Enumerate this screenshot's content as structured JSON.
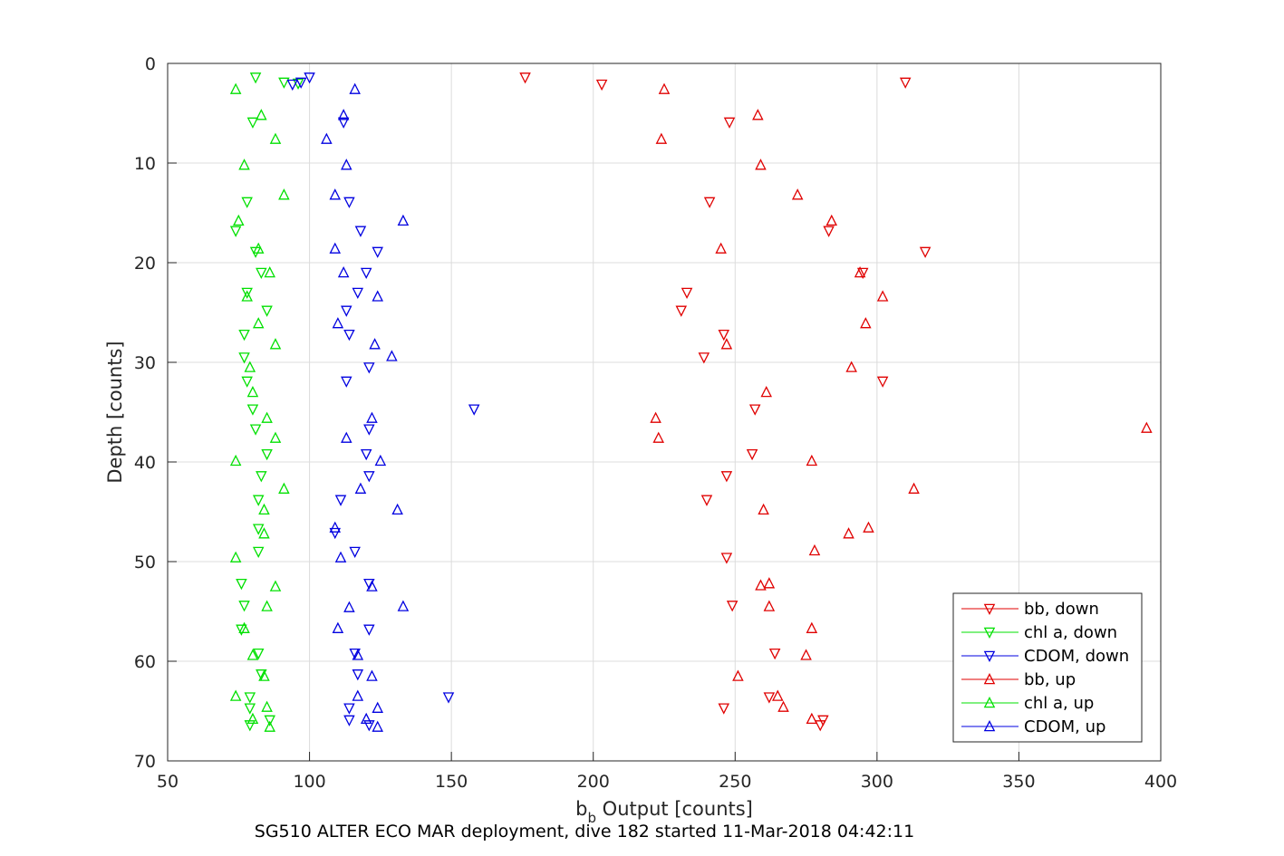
{
  "chart_data": {
    "type": "scatter",
    "xlabel_main": "b",
    "xlabel_sub": "b",
    "xlabel_rest": " Output [counts]",
    "ylabel": "Depth [counts]",
    "footer": "SG510 ALTER ECO MAR deployment, dive 182 started 11-Mar-2018 04:42:11",
    "xlim": [
      50,
      400
    ],
    "ylim": [
      0,
      70
    ],
    "y_reversed": true,
    "grid": true,
    "legend_position": "bottom-right",
    "xticks": [
      "50",
      "100",
      "150",
      "200",
      "250",
      "300",
      "350",
      "400"
    ],
    "yticks": [
      "0",
      "10",
      "20",
      "30",
      "40",
      "50",
      "60",
      "70"
    ],
    "series": [
      {
        "name": "bb, down",
        "color": "#e00000",
        "marker": "triangle-down",
        "points": [
          [
            176,
            1.4
          ],
          [
            203,
            2.1
          ],
          [
            310,
            1.9
          ],
          [
            248,
            5.9
          ],
          [
            241,
            13.9
          ],
          [
            283,
            16.8
          ],
          [
            317,
            18.9
          ],
          [
            295,
            21.0
          ],
          [
            233,
            23.0
          ],
          [
            231,
            24.8
          ],
          [
            246,
            27.2
          ],
          [
            239,
            29.5
          ],
          [
            302,
            31.9
          ],
          [
            257,
            34.7
          ],
          [
            256,
            39.2
          ],
          [
            247,
            41.4
          ],
          [
            240,
            43.8
          ],
          [
            247,
            49.6
          ],
          [
            249,
            54.4
          ],
          [
            264,
            59.2
          ],
          [
            262,
            63.6
          ],
          [
            246,
            64.7
          ],
          [
            281,
            65.9
          ],
          [
            280,
            66.4
          ]
        ]
      },
      {
        "name": "chl a, down",
        "color": "#00e000",
        "marker": "triangle-down",
        "points": [
          [
            81,
            1.4
          ],
          [
            91,
            1.9
          ],
          [
            96,
            2.0
          ],
          [
            80,
            5.9
          ],
          [
            78,
            13.9
          ],
          [
            74,
            16.8
          ],
          [
            81,
            18.9
          ],
          [
            83,
            21.0
          ],
          [
            78,
            23.0
          ],
          [
            85,
            24.8
          ],
          [
            77,
            27.2
          ],
          [
            77,
            29.5
          ],
          [
            78,
            31.9
          ],
          [
            80,
            34.7
          ],
          [
            81,
            36.7
          ],
          [
            85,
            39.2
          ],
          [
            83,
            41.4
          ],
          [
            82,
            43.8
          ],
          [
            82,
            46.7
          ],
          [
            82,
            49.0
          ],
          [
            76,
            52.2
          ],
          [
            77,
            54.4
          ],
          [
            76,
            56.8
          ],
          [
            82,
            59.2
          ],
          [
            83,
            61.3
          ],
          [
            79,
            63.6
          ],
          [
            79,
            64.7
          ],
          [
            86,
            65.9
          ],
          [
            79,
            66.4
          ]
        ]
      },
      {
        "name": "CDOM, down",
        "color": "#0000e0",
        "marker": "triangle-down",
        "points": [
          [
            100,
            1.4
          ],
          [
            97,
            1.9
          ],
          [
            94,
            2.1
          ],
          [
            112,
            5.9
          ],
          [
            114,
            13.9
          ],
          [
            118,
            16.8
          ],
          [
            124,
            18.9
          ],
          [
            120,
            21.0
          ],
          [
            117,
            23.0
          ],
          [
            113,
            24.8
          ],
          [
            114,
            27.2
          ],
          [
            121,
            30.5
          ],
          [
            113,
            31.9
          ],
          [
            158,
            34.7
          ],
          [
            121,
            36.7
          ],
          [
            120,
            39.2
          ],
          [
            121,
            41.4
          ],
          [
            111,
            43.8
          ],
          [
            109,
            47.1
          ],
          [
            116,
            49.0
          ],
          [
            121,
            52.2
          ],
          [
            121,
            56.8
          ],
          [
            116,
            59.2
          ],
          [
            117,
            61.3
          ],
          [
            149,
            63.6
          ],
          [
            114,
            64.7
          ],
          [
            114,
            65.9
          ],
          [
            121,
            66.4
          ]
        ]
      },
      {
        "name": "bb, up",
        "color": "#e00000",
        "marker": "triangle-up",
        "points": [
          [
            225,
            2.6
          ],
          [
            258,
            5.2
          ],
          [
            224,
            7.6
          ],
          [
            259,
            10.2
          ],
          [
            272,
            13.2
          ],
          [
            284,
            15.8
          ],
          [
            245,
            18.6
          ],
          [
            294,
            21.0
          ],
          [
            302,
            23.4
          ],
          [
            296,
            26.1
          ],
          [
            247,
            28.2
          ],
          [
            291,
            30.5
          ],
          [
            261,
            33.0
          ],
          [
            222,
            35.6
          ],
          [
            395,
            36.6
          ],
          [
            223,
            37.6
          ],
          [
            277,
            39.9
          ],
          [
            313,
            42.7
          ],
          [
            260,
            44.8
          ],
          [
            297,
            46.6
          ],
          [
            290,
            47.2
          ],
          [
            278,
            48.9
          ],
          [
            262,
            52.2
          ],
          [
            259,
            52.4
          ],
          [
            262,
            54.5
          ],
          [
            277,
            56.7
          ],
          [
            275,
            59.4
          ],
          [
            251,
            61.5
          ],
          [
            265,
            63.5
          ],
          [
            267,
            64.6
          ],
          [
            277,
            65.8
          ]
        ]
      },
      {
        "name": "chl a, up",
        "color": "#00e000",
        "marker": "triangle-up",
        "points": [
          [
            74,
            2.6
          ],
          [
            83,
            5.2
          ],
          [
            88,
            7.6
          ],
          [
            77,
            10.2
          ],
          [
            91,
            13.2
          ],
          [
            75,
            15.8
          ],
          [
            82,
            18.6
          ],
          [
            86,
            21.0
          ],
          [
            78,
            23.4
          ],
          [
            82,
            26.1
          ],
          [
            88,
            28.2
          ],
          [
            79,
            30.5
          ],
          [
            80,
            33.0
          ],
          [
            85,
            35.6
          ],
          [
            88,
            37.6
          ],
          [
            74,
            39.9
          ],
          [
            91,
            42.7
          ],
          [
            84,
            44.8
          ],
          [
            84,
            47.2
          ],
          [
            74,
            49.6
          ],
          [
            88,
            52.5
          ],
          [
            85,
            54.5
          ],
          [
            77,
            56.7
          ],
          [
            80,
            59.4
          ],
          [
            84,
            61.5
          ],
          [
            74,
            63.5
          ],
          [
            85,
            64.6
          ],
          [
            80,
            65.8
          ],
          [
            86,
            66.6
          ]
        ]
      },
      {
        "name": "CDOM, up",
        "color": "#0000e0",
        "marker": "triangle-up",
        "points": [
          [
            116,
            2.6
          ],
          [
            112,
            5.2
          ],
          [
            106,
            7.6
          ],
          [
            113,
            10.2
          ],
          [
            109,
            13.2
          ],
          [
            133,
            15.8
          ],
          [
            109,
            18.6
          ],
          [
            112,
            21.0
          ],
          [
            124,
            23.4
          ],
          [
            110,
            26.1
          ],
          [
            123,
            28.2
          ],
          [
            129,
            29.4
          ],
          [
            122,
            35.6
          ],
          [
            113,
            37.6
          ],
          [
            125,
            39.9
          ],
          [
            118,
            42.7
          ],
          [
            131,
            44.8
          ],
          [
            109,
            46.6
          ],
          [
            111,
            49.6
          ],
          [
            122,
            52.5
          ],
          [
            133,
            54.5
          ],
          [
            114,
            54.6
          ],
          [
            110,
            56.7
          ],
          [
            117,
            59.4
          ],
          [
            122,
            61.5
          ],
          [
            117,
            63.5
          ],
          [
            124,
            64.7
          ],
          [
            120,
            65.8
          ],
          [
            124,
            66.6
          ]
        ]
      }
    ]
  }
}
